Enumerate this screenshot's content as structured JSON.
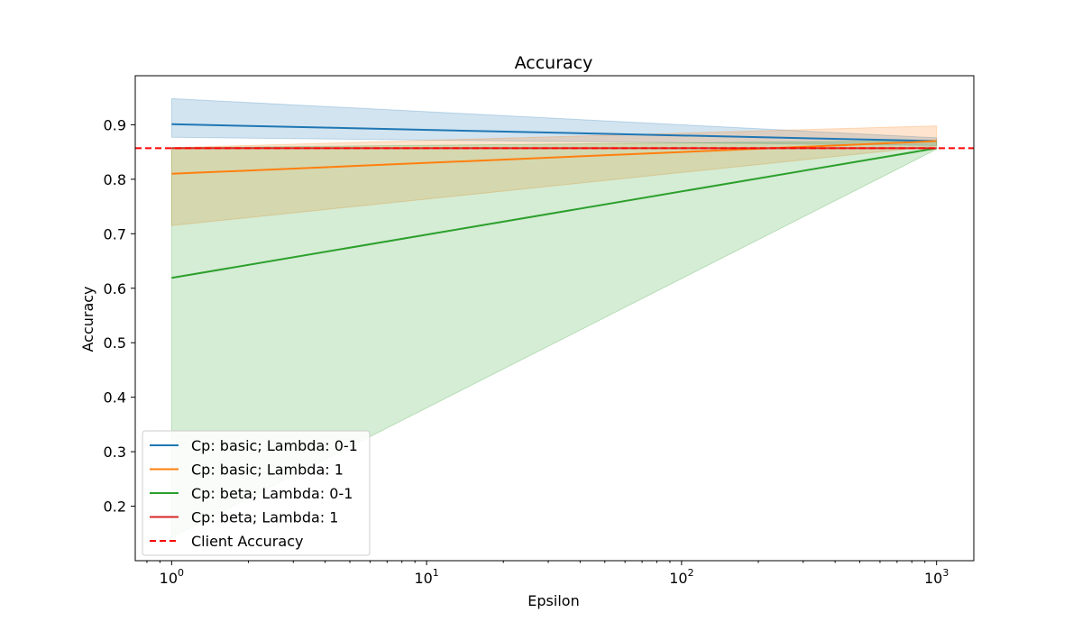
{
  "chart_data": {
    "type": "line",
    "title": "Accuracy",
    "xlabel": "Epsilon",
    "ylabel": "Accuracy",
    "x_scale": "log",
    "xlim": [
      0.72,
      1400
    ],
    "ylim": [
      0.1,
      0.99
    ],
    "x_ticks": [
      {
        "value": 1,
        "base": "10",
        "exp": "0"
      },
      {
        "value": 10,
        "base": "10",
        "exp": "1"
      },
      {
        "value": 100,
        "base": "10",
        "exp": "2"
      },
      {
        "value": 1000,
        "base": "10",
        "exp": "3"
      }
    ],
    "y_ticks": [
      "0.2",
      "0.3",
      "0.4",
      "0.5",
      "0.6",
      "0.7",
      "0.8",
      "0.9"
    ],
    "x": [
      1,
      1000
    ],
    "series": [
      {
        "name": "Cp: basic; Lambda: 0-1",
        "color": "#1f77b4",
        "values": [
          0.901,
          0.87
        ],
        "lower": [
          0.877,
          0.862
        ],
        "upper": [
          0.948,
          0.876
        ]
      },
      {
        "name": "Cp: basic; Lambda: 1",
        "color": "#ff7f0e",
        "values": [
          0.81,
          0.87
        ],
        "lower": [
          0.715,
          0.861
        ],
        "upper": [
          0.858,
          0.898
        ]
      },
      {
        "name": "Cp: beta; Lambda: 0-1",
        "color": "#2ca02c",
        "values": [
          0.619,
          0.857
        ],
        "lower": [
          0.143,
          0.855
        ],
        "upper": [
          0.858,
          0.871
        ]
      },
      {
        "name": "Cp: beta; Lambda: 1",
        "color": "#d62728",
        "values": [
          0.857,
          0.857
        ],
        "lower": [
          0.857,
          0.857
        ],
        "upper": [
          0.857,
          0.857
        ]
      }
    ],
    "reference_line": {
      "name": "Client Accuracy",
      "value": 0.857,
      "color": "#ff0000",
      "style": "dashed"
    },
    "legend_position": "lower-left",
    "grid": false
  }
}
